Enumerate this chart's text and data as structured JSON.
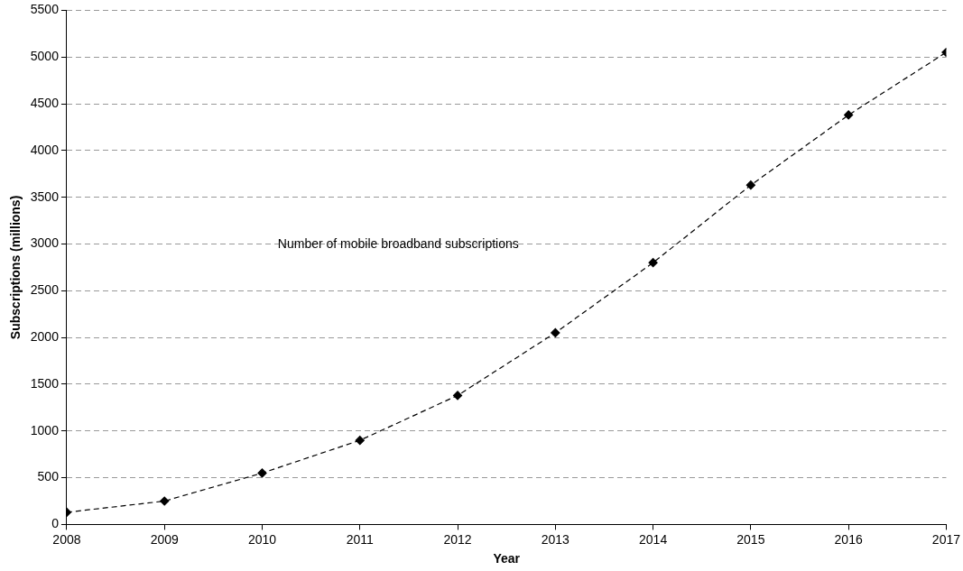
{
  "chart_data": {
    "type": "line",
    "xlabel": "Year",
    "ylabel": "Subscriptions (millions)",
    "x": [
      2008,
      2009,
      2010,
      2011,
      2012,
      2013,
      2014,
      2015,
      2016,
      2017
    ],
    "series": [
      {
        "name": "Number of mobile broadband subscriptions",
        "color": "#000000",
        "values": [
          130,
          250,
          550,
          900,
          1380,
          2050,
          2800,
          3630,
          4380,
          5050
        ]
      }
    ],
    "xlim": [
      2008,
      2017
    ],
    "xticks": [
      2008,
      2009,
      2010,
      2011,
      2012,
      2013,
      2014,
      2015,
      2016,
      2017
    ],
    "ylim": [
      0,
      5500
    ],
    "yticks": [
      0,
      500,
      1000,
      1500,
      2000,
      2500,
      3000,
      3500,
      4000,
      4500,
      5000,
      5500
    ],
    "grid": "y",
    "legend": false,
    "marker": "diamond",
    "line_style": "dashed"
  }
}
